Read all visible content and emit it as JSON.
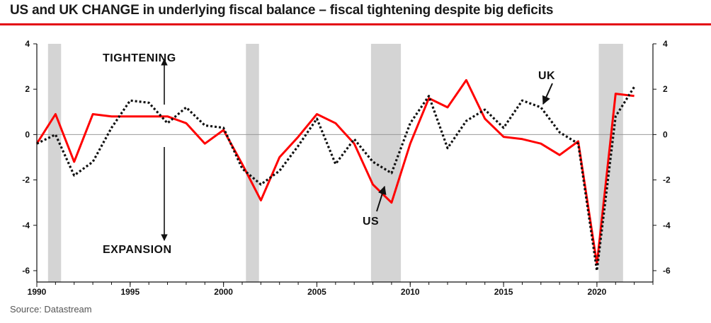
{
  "header": {
    "title": "US and UK CHANGE in underlying fiscal balance – fiscal tightening despite big deficits"
  },
  "footer": {
    "source": "Source: Datastream"
  },
  "colors": {
    "us": "#ff0000",
    "uk": "#111111",
    "recession": "#d4d4d4",
    "accent": "#e30613"
  },
  "chart_data": {
    "type": "line",
    "title": "US and UK CHANGE in underlying fiscal balance – fiscal tightening despite big deficits",
    "xlabel": "",
    "ylabel": "",
    "xlim": [
      1990,
      2023
    ],
    "ylim": [
      -6.5,
      4
    ],
    "x_ticks": [
      "1990",
      "1995",
      "2000",
      "2005",
      "2010",
      "2015",
      "2020"
    ],
    "x_tick_values": [
      1990,
      1995,
      2000,
      2005,
      2010,
      2015,
      2020
    ],
    "y_ticks": [
      "4",
      "2",
      "0",
      "-2",
      "-4",
      "-6"
    ],
    "y_tick_values": [
      4,
      2,
      0,
      -2,
      -4,
      -6
    ],
    "recession_bands": [
      [
        1990.6,
        1991.3
      ],
      [
        2001.2,
        2001.9
      ],
      [
        2007.9,
        2009.5
      ],
      [
        2020.1,
        2021.4
      ]
    ],
    "series": [
      {
        "name": "US",
        "style": "solid",
        "x": [
          1990,
          1991,
          1992,
          1993,
          1994,
          1995,
          1996,
          1997,
          1998,
          1999,
          2000,
          2001,
          2002,
          2003,
          2004,
          2005,
          2006,
          2007,
          2008,
          2009,
          2010,
          2011,
          2012,
          2013,
          2014,
          2015,
          2016,
          2017,
          2018,
          2019,
          2020,
          2021,
          2022
        ],
        "values": [
          -0.4,
          0.9,
          -1.2,
          0.9,
          0.8,
          0.8,
          0.8,
          0.8,
          0.5,
          -0.4,
          0.2,
          -1.3,
          -2.9,
          -1.0,
          -0.1,
          0.9,
          0.5,
          -0.4,
          -2.2,
          -3.0,
          -0.4,
          1.6,
          1.2,
          2.4,
          0.7,
          -0.1,
          -0.2,
          -0.4,
          -0.9,
          -0.3,
          -5.7,
          1.8,
          1.7
        ]
      },
      {
        "name": "UK",
        "style": "dotted",
        "x": [
          1990,
          1991,
          1992,
          1993,
          1994,
          1995,
          1996,
          1997,
          1998,
          1999,
          2000,
          2001,
          2002,
          2003,
          2004,
          2005,
          2006,
          2007,
          2008,
          2009,
          2010,
          2011,
          2012,
          2013,
          2014,
          2015,
          2016,
          2017,
          2018,
          2019,
          2020,
          2021,
          2022
        ],
        "values": [
          -0.4,
          0.0,
          -1.8,
          -1.2,
          0.3,
          1.5,
          1.4,
          0.5,
          1.2,
          0.4,
          0.3,
          -1.5,
          -2.2,
          -1.6,
          -0.5,
          0.7,
          -1.3,
          -0.2,
          -1.2,
          -1.7,
          0.5,
          1.7,
          -0.6,
          0.6,
          1.1,
          0.3,
          1.5,
          1.2,
          0.1,
          -0.4,
          -6.0,
          0.8,
          2.1
        ]
      }
    ],
    "annotations": [
      "TIGHTENING",
      "EXPANSION",
      "UK",
      "US"
    ]
  }
}
